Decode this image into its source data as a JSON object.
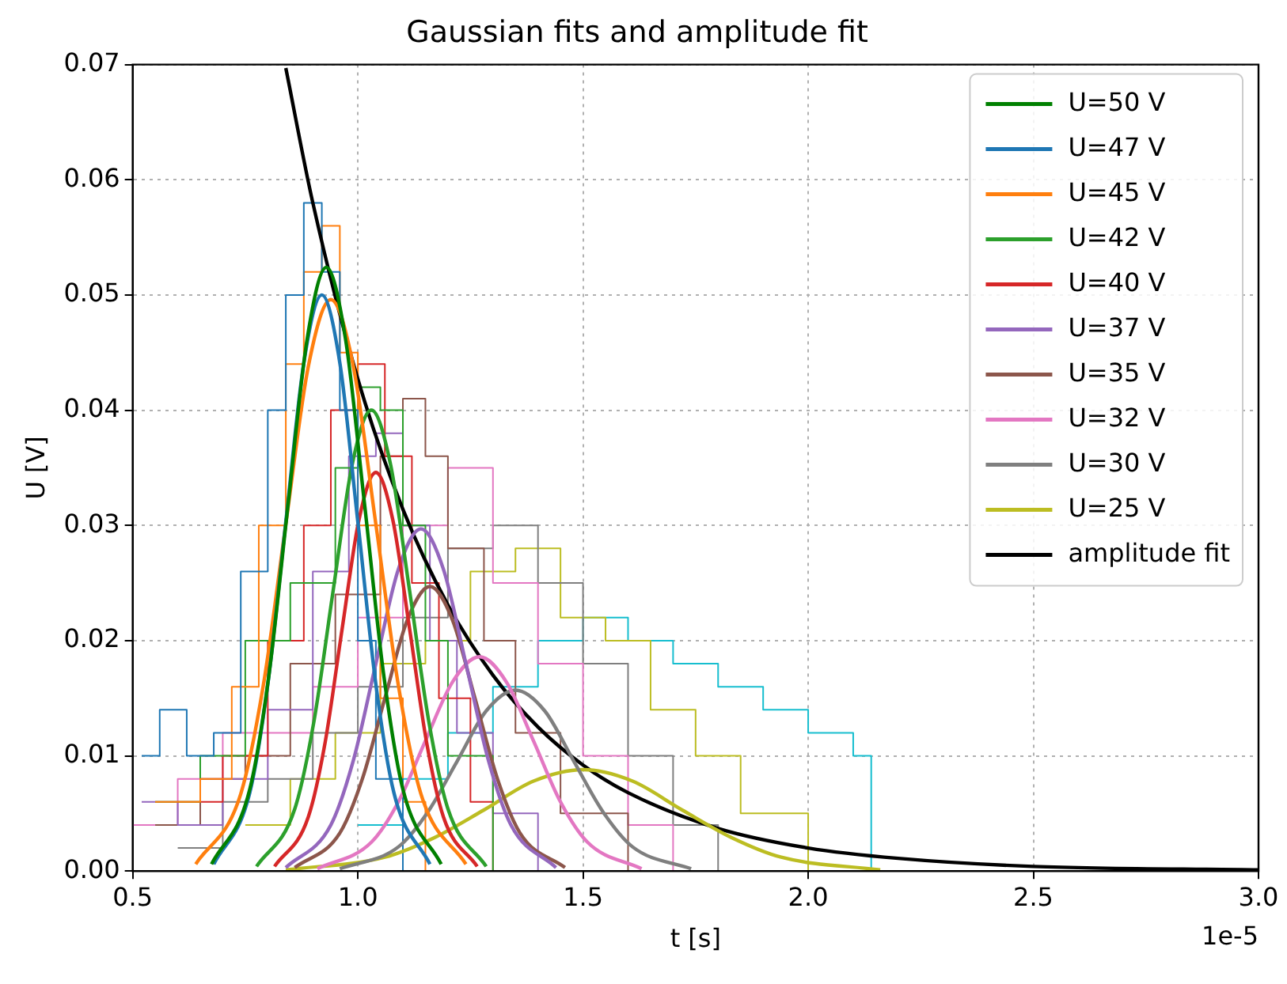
{
  "chart_data": {
    "type": "line",
    "title": "Gaussian fits and amplitude fit",
    "xlabel": "t [s]",
    "ylabel": "U [V]",
    "annotations": [
      "1e-5"
    ],
    "xlim": [
      0.5,
      3.0
    ],
    "xticks": [
      0.5,
      {
        "value": 1,
        "label": "1.0"
      },
      1.5,
      {
        "value": 2,
        "label": "2.0"
      },
      2.5,
      {
        "value": 3,
        "label": "3.0"
      }
    ],
    "ylim": [
      0,
      0.07
    ],
    "yticks": [
      {
        "value": 0,
        "label": "0.00"
      },
      {
        "value": 0.01,
        "label": "0.01"
      },
      {
        "value": 0.02,
        "label": "0.02"
      },
      {
        "value": 0.03,
        "label": "0.03"
      },
      {
        "value": 0.04,
        "label": "0.04"
      },
      {
        "value": 0.05,
        "label": "0.05"
      },
      {
        "value": 0.06,
        "label": "0.06"
      },
      {
        "value": 0.07,
        "label": "0.07"
      }
    ],
    "grid": true,
    "legend": "top right",
    "marker": "none",
    "line_style": "solid",
    "series": [
      {
        "name": "U=50 V",
        "color": "#008000",
        "x": [
          0.675,
          0.76,
          0.8025,
          0.845,
          0.8875,
          0.93,
          0.9725,
          1.015,
          1.0575,
          1.1,
          1.185
        ],
        "values": [
          0.0006,
          0.0071,
          0.017,
          0.0318,
          0.0462,
          0.0524,
          0.0462,
          0.0318,
          0.017,
          0.0071,
          0.0006
        ]
      },
      {
        "name": "U=47 V",
        "color": "#1f77b4",
        "x": [
          0.68,
          0.76,
          0.8,
          0.84,
          0.88,
          0.92,
          0.96,
          1.0,
          1.04,
          1.08,
          1.16
        ],
        "values": [
          0.0006,
          0.0068,
          0.0162,
          0.0303,
          0.0441,
          0.05,
          0.0441,
          0.0303,
          0.0162,
          0.0068,
          0.0006
        ]
      },
      {
        "name": "U=45 V",
        "color": "#ff7f0e",
        "x": [
          0.64,
          0.74,
          0.79,
          0.84,
          0.89,
          0.94,
          0.99,
          1.04,
          1.09,
          1.14,
          1.24
        ],
        "values": [
          0.0006,
          0.0067,
          0.0161,
          0.0301,
          0.0438,
          0.0496,
          0.0438,
          0.0301,
          0.0161,
          0.0067,
          0.0006
        ]
      },
      {
        "name": "U=42 V",
        "color": "#2ca02c",
        "x": [
          0.775,
          0.86,
          0.9025,
          0.945,
          0.9875,
          1.03,
          1.0725,
          1.115,
          1.1575,
          1.2,
          1.285
        ],
        "values": [
          0.0004,
          0.0054,
          0.013,
          0.0243,
          0.0353,
          0.04,
          0.0353,
          0.0243,
          0.013,
          0.0054,
          0.0004
        ]
      },
      {
        "name": "U=40 V",
        "color": "#d62728",
        "x": [
          0.815,
          0.89,
          0.9275,
          0.965,
          1.0025,
          1.04,
          1.0775,
          1.115,
          1.1525,
          1.19,
          1.265
        ],
        "values": [
          0.0004,
          0.0047,
          0.0112,
          0.021,
          0.0305,
          0.0346,
          0.0305,
          0.021,
          0.0112,
          0.0047,
          0.0004
        ]
      },
      {
        "name": "U=37 V",
        "color": "#9467bd",
        "x": [
          0.84,
          0.94,
          0.99,
          1.04,
          1.09,
          1.14,
          1.19,
          1.24,
          1.29,
          1.34,
          1.44
        ],
        "values": [
          0.0003,
          0.004,
          0.0096,
          0.018,
          0.0262,
          0.0297,
          0.0262,
          0.018,
          0.0096,
          0.004,
          0.0003
        ]
      },
      {
        "name": "U=35 V",
        "color": "#8c564b",
        "x": [
          0.86,
          0.96,
          1.01,
          1.06,
          1.11,
          1.16,
          1.21,
          1.26,
          1.31,
          1.36,
          1.46
        ],
        "values": [
          0.0003,
          0.0033,
          0.008,
          0.015,
          0.0218,
          0.0247,
          0.0218,
          0.015,
          0.008,
          0.0033,
          0.0003
        ]
      },
      {
        "name": "U=32 V",
        "color": "#e377c2",
        "x": [
          0.91,
          1.03,
          1.09,
          1.15,
          1.21,
          1.27,
          1.33,
          1.39,
          1.45,
          1.51,
          1.63
        ],
        "values": [
          0.0002,
          0.0025,
          0.006,
          0.0113,
          0.0164,
          0.0186,
          0.0164,
          0.0113,
          0.006,
          0.0025,
          0.0002
        ]
      },
      {
        "name": "U=30 V",
        "color": "#7f7f7f",
        "x": [
          0.96,
          1.09,
          1.155,
          1.22,
          1.285,
          1.35,
          1.415,
          1.48,
          1.545,
          1.61,
          1.74
        ],
        "values": [
          0.0002,
          0.0021,
          0.0051,
          0.0095,
          0.0139,
          0.0157,
          0.0139,
          0.0095,
          0.0051,
          0.0021,
          0.0002
        ]
      },
      {
        "name": "U=25 V",
        "color": "#bcbd22",
        "x": [
          0.84,
          1.06,
          1.17,
          1.28,
          1.39,
          1.5,
          1.61,
          1.72,
          1.83,
          1.94,
          2.16
        ],
        "values": [
          0.0001,
          0.0012,
          0.0029,
          0.0053,
          0.0078,
          0.0088,
          0.0078,
          0.0053,
          0.0029,
          0.0012,
          0.0001
        ]
      },
      {
        "name": "amplitude fit",
        "color": "#000000",
        "x": [
          0.84,
          0.9,
          1.0,
          1.1,
          1.2,
          1.3,
          1.4,
          1.5,
          1.6,
          1.8,
          2.0,
          2.2,
          2.5,
          3.0
        ],
        "values": [
          0.0697,
          0.058,
          0.0427,
          0.0314,
          0.0231,
          0.017,
          0.0125,
          0.0092,
          0.0068,
          0.0037,
          0.002,
          0.0011,
          0.0004,
          0.0001
        ]
      },
      {
        "type": "step",
        "color": "#1f77b4",
        "x": [
          0.52,
          0.56,
          0.62,
          0.68,
          0.74,
          0.8,
          0.84,
          0.88,
          0.92,
          0.96,
          1.0,
          1.04,
          1.1
        ],
        "values": [
          0.01,
          0.014,
          0.01,
          0.012,
          0.026,
          0.04,
          0.05,
          0.058,
          0.052,
          0.04,
          0.02,
          0.008,
          0
        ]
      },
      {
        "type": "step",
        "color": "#ff7f0e",
        "x": [
          0.55,
          0.65,
          0.72,
          0.78,
          0.84,
          0.88,
          0.92,
          0.96,
          1.0,
          1.05,
          1.1,
          1.15
        ],
        "values": [
          0.006,
          0.008,
          0.016,
          0.03,
          0.044,
          0.052,
          0.056,
          0.045,
          0.03,
          0.015,
          0.006,
          0
        ]
      },
      {
        "type": "step",
        "color": "#2ca02c",
        "x": [
          0.55,
          0.65,
          0.75,
          0.85,
          0.95,
          1.0,
          1.05,
          1.1,
          1.15,
          1.2,
          1.3
        ],
        "values": [
          0.006,
          0.01,
          0.02,
          0.025,
          0.035,
          0.042,
          0.04,
          0.03,
          0.02,
          0.01,
          0
        ]
      },
      {
        "type": "step",
        "color": "#d62728",
        "x": [
          0.6,
          0.7,
          0.8,
          0.88,
          0.94,
          1.0,
          1.06,
          1.12,
          1.18,
          1.25,
          1.3
        ],
        "values": [
          0.006,
          0.01,
          0.02,
          0.03,
          0.04,
          0.044,
          0.036,
          0.025,
          0.015,
          0.006,
          0
        ]
      },
      {
        "type": "step",
        "color": "#9467bd",
        "x": [
          0.52,
          0.6,
          0.7,
          0.8,
          0.9,
          0.98,
          1.04,
          1.1,
          1.16,
          1.22,
          1.3,
          1.4
        ],
        "values": [
          0.006,
          0.004,
          0.008,
          0.014,
          0.026,
          0.036,
          0.038,
          0.03,
          0.02,
          0.012,
          0.005,
          0
        ]
      },
      {
        "type": "step",
        "color": "#8c564b",
        "x": [
          0.55,
          0.65,
          0.75,
          0.85,
          0.95,
          1.05,
          1.1,
          1.15,
          1.2,
          1.28,
          1.35,
          1.45,
          1.6
        ],
        "values": [
          0.004,
          0.008,
          0.01,
          0.018,
          0.024,
          0.036,
          0.041,
          0.036,
          0.028,
          0.02,
          0.012,
          0.005,
          0
        ]
      },
      {
        "type": "step",
        "color": "#e377c2",
        "x": [
          0.5,
          0.6,
          0.7,
          0.8,
          0.9,
          1.0,
          1.1,
          1.2,
          1.3,
          1.4,
          1.5,
          1.6,
          1.7
        ],
        "values": [
          0.004,
          0.008,
          0.012,
          0.012,
          0.016,
          0.022,
          0.03,
          0.035,
          0.025,
          0.018,
          0.01,
          0.004,
          0
        ]
      },
      {
        "type": "step",
        "color": "#7f7f7f",
        "x": [
          0.6,
          0.7,
          0.8,
          0.9,
          1.0,
          1.1,
          1.2,
          1.3,
          1.4,
          1.5,
          1.6,
          1.7,
          1.8
        ],
        "values": [
          0.002,
          0.006,
          0.008,
          0.012,
          0.016,
          0.022,
          0.028,
          0.03,
          0.025,
          0.018,
          0.01,
          0.004,
          0
        ]
      },
      {
        "type": "step",
        "color": "#bcbd22",
        "x": [
          0.75,
          0.85,
          0.95,
          1.05,
          1.15,
          1.25,
          1.35,
          1.45,
          1.55,
          1.65,
          1.75,
          1.85,
          2.0
        ],
        "values": [
          0.004,
          0.008,
          0.012,
          0.018,
          0.02,
          0.026,
          0.028,
          0.022,
          0.02,
          0.014,
          0.01,
          0.005,
          0
        ]
      },
      {
        "type": "step",
        "color": "#17becf",
        "x": [
          1.0,
          1.1,
          1.2,
          1.3,
          1.4,
          1.5,
          1.6,
          1.7,
          1.8,
          1.9,
          2.0,
          2.1,
          2.14
        ],
        "values": [
          0.004,
          0.008,
          0.012,
          0.016,
          0.02,
          0.022,
          0.02,
          0.018,
          0.016,
          0.014,
          0.012,
          0.01,
          0
        ]
      }
    ]
  }
}
